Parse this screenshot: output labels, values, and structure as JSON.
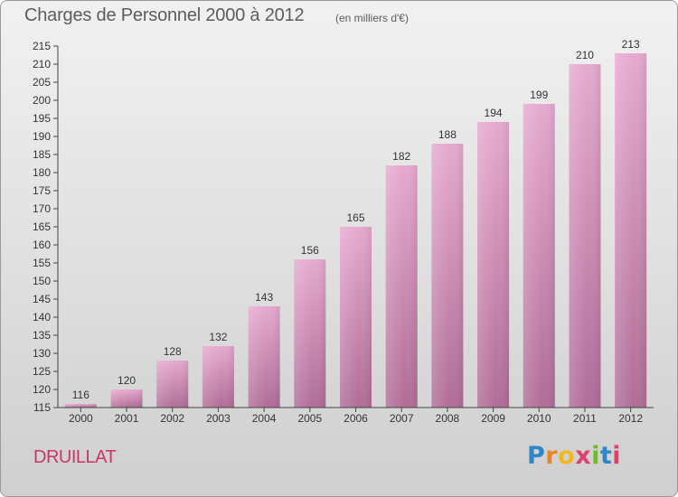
{
  "header": {
    "title": "Charges de Personnel 2000 à 2012",
    "subtitle": "(en milliers d'€)"
  },
  "footer": {
    "commune": "DRUILLAT",
    "logo_text": "Proxiti",
    "logo_letters": [
      "P",
      "r",
      "o",
      "x",
      "i",
      "t",
      "i"
    ],
    "logo_colors": [
      "#2f86c8",
      "#e9862a",
      "#f2b81c",
      "#e0406d",
      "#74b82f",
      "#2f86c8",
      "#e0406d"
    ]
  },
  "colors": {
    "bar_top": "#e6a9cf",
    "bar_bottom": "#b06d97",
    "axis": "#444444",
    "text": "#333333"
  },
  "chart_data": {
    "type": "bar",
    "title": "Charges de Personnel 2000 à 2012",
    "subtitle": "(en milliers d'€)",
    "xlabel": "",
    "ylabel": "",
    "categories": [
      "2000",
      "2001",
      "2002",
      "2003",
      "2004",
      "2005",
      "2006",
      "2007",
      "2008",
      "2009",
      "2010",
      "2011",
      "2012"
    ],
    "values": [
      116,
      120,
      128,
      132,
      143,
      156,
      165,
      182,
      188,
      194,
      199,
      210,
      213
    ],
    "ylim": [
      115,
      215
    ],
    "yticks": [
      115,
      120,
      125,
      130,
      135,
      140,
      145,
      150,
      155,
      160,
      165,
      170,
      175,
      180,
      185,
      190,
      195,
      200,
      205,
      210,
      215
    ],
    "grid": false,
    "legend": "none",
    "data_labels": true
  }
}
